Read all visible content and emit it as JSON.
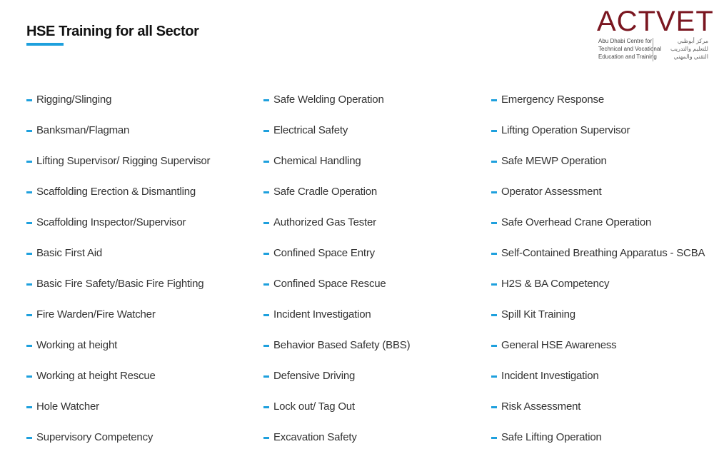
{
  "header": {
    "title": "HSE Training for all Sector",
    "accent_color": "#1ea0dd"
  },
  "logo": {
    "name": "ACTVET",
    "english_lines": [
      "Abu Dhabi Centre for",
      "Technical and Vocational",
      "Education and Training"
    ],
    "arabic_lines": [
      "مركز أبوظبي",
      "للتعليم والتدريب",
      "التقني والمهني"
    ],
    "color": "#7a1620"
  },
  "columns": [
    [
      "Rigging/Slinging",
      "Banksman/Flagman",
      "Lifting Supervisor/ Rigging Supervisor",
      "Scaffolding Erection & Dismantling",
      "Scaffolding Inspector/Supervisor",
      "Basic First Aid",
      "Basic Fire Safety/Basic Fire Fighting",
      "Fire Warden/Fire Watcher",
      "Working at height",
      "Working at height Rescue",
      "Hole Watcher",
      "Supervisory Competency"
    ],
    [
      "Safe Welding Operation",
      "Electrical Safety",
      "Chemical Handling",
      "Safe Cradle Operation",
      "Authorized Gas Tester",
      "Confined Space Entry",
      "Confined Space Rescue",
      "Incident Investigation",
      "Behavior Based Safety (BBS)",
      "Defensive Driving",
      "Lock out/ Tag Out",
      "Excavation Safety"
    ],
    [
      "Emergency Response",
      "Lifting Operation Supervisor",
      "Safe MEWP Operation",
      "Operator Assessment",
      "Safe Overhead Crane Operation",
      "Self-Contained Breathing Apparatus - SCBA",
      "H2S & BA Competency",
      "Spill Kit Training",
      "General HSE Awareness",
      "Incident Investigation",
      "Risk Assessment",
      "Safe Lifting Operation"
    ]
  ]
}
